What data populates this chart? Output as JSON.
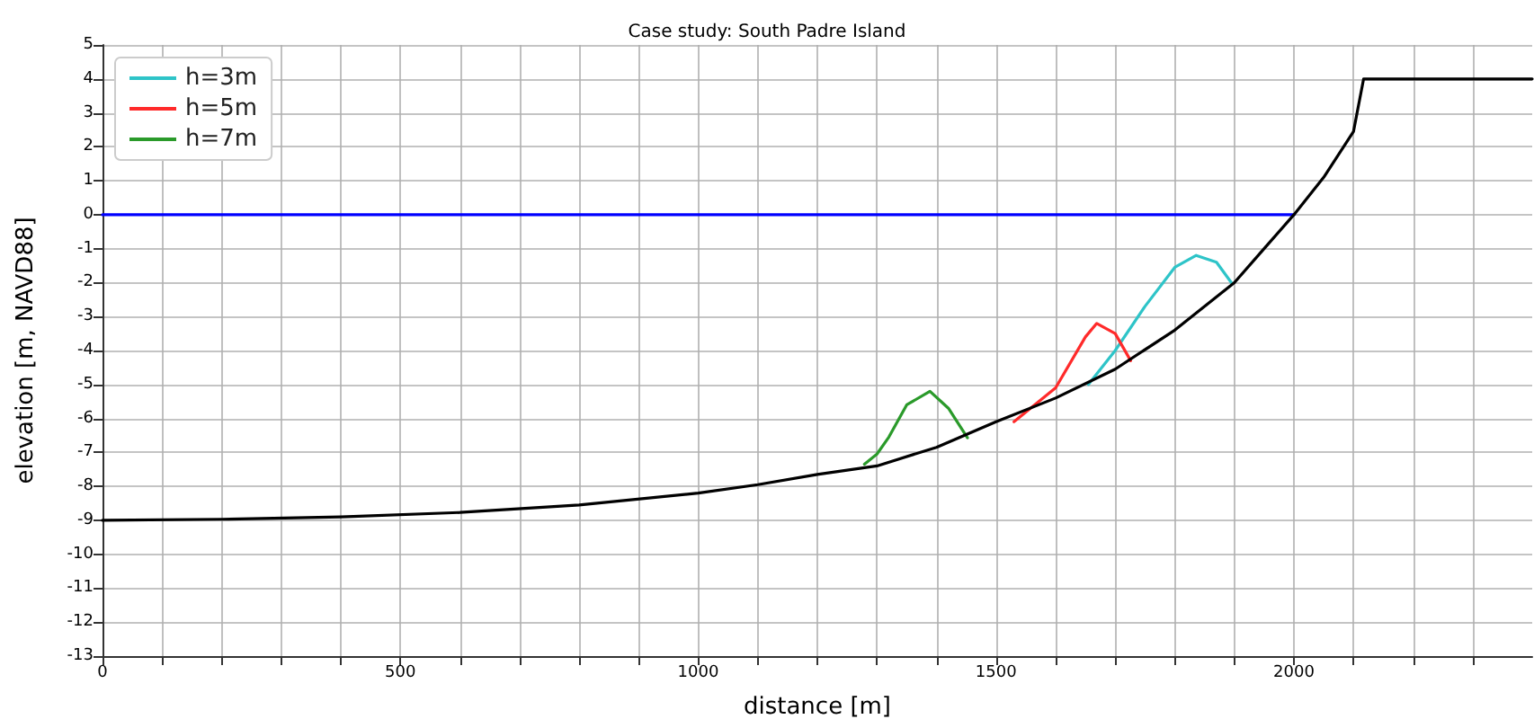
{
  "chart_data": {
    "type": "line",
    "title": "Case study: South Padre Island",
    "xlabel": "distance [m]",
    "ylabel": "elevation [m, NAVD88]",
    "series": [
      {
        "color": "#0000ff",
        "x": [
          0,
          2000
        ],
        "values": [
          0,
          0
        ]
      },
      {
        "name": "h=3m",
        "color": "#2ec4c8",
        "x": [
          1655,
          1700,
          1750,
          1800,
          1836,
          1870,
          1895
        ],
        "values": [
          -5.0,
          -4.0,
          -2.7,
          -1.55,
          -1.2,
          -1.4,
          -2.0
        ]
      },
      {
        "name": "h=5m",
        "color": "#ff2a2a",
        "x": [
          1530,
          1600,
          1650,
          1669,
          1700,
          1726
        ],
        "values": [
          -6.1,
          -5.1,
          -3.6,
          -3.2,
          -3.5,
          -4.3
        ]
      },
      {
        "name": "h=7m",
        "color": "#2a9a2a",
        "x": [
          1279,
          1300,
          1320,
          1350,
          1389,
          1420,
          1452
        ],
        "values": [
          -7.35,
          -7.05,
          -6.55,
          -5.6,
          -5.2,
          -5.7,
          -6.57
        ]
      },
      {
        "color": "#000000",
        "x": [
          0,
          200,
          400,
          600,
          800,
          1000,
          1100,
          1200,
          1300,
          1400,
          1500,
          1600,
          1700,
          1800,
          1900,
          1950,
          2000,
          2050,
          2100,
          2117,
          2400
        ],
        "values": [
          -9,
          -8.97,
          -8.9,
          -8.77,
          -8.55,
          -8.2,
          -7.95,
          -7.65,
          -7.4,
          -6.85,
          -6.1,
          -5.4,
          -4.55,
          -3.4,
          -2.0,
          -1.0,
          0,
          1.1,
          2.45,
          4,
          4
        ]
      }
    ],
    "xlim": [
      0,
      2400
    ],
    "xticks": [
      0,
      {
        "value": 100,
        "label": null
      },
      {
        "value": 200,
        "label": null
      },
      {
        "value": 300,
        "label": null
      },
      {
        "value": 400,
        "label": null
      },
      500,
      {
        "value": 600,
        "label": null
      },
      {
        "value": 700,
        "label": null
      },
      {
        "value": 800,
        "label": null
      },
      {
        "value": 900,
        "label": null
      },
      1000,
      {
        "value": 1100,
        "label": null
      },
      {
        "value": 1200,
        "label": null
      },
      {
        "value": 1300,
        "label": null
      },
      {
        "value": 1400,
        "label": null
      },
      1500,
      {
        "value": 1600,
        "label": null
      },
      {
        "value": 1700,
        "label": null
      },
      {
        "value": 1800,
        "label": null
      },
      {
        "value": 1900,
        "label": null
      },
      2000,
      {
        "value": 2100,
        "label": null
      },
      {
        "value": 2200,
        "label": null
      },
      {
        "value": 2300,
        "label": null
      }
    ],
    "ylim": [
      -13,
      5
    ],
    "yticks": [
      -13,
      -12,
      -11,
      -10,
      -9,
      -8,
      -7,
      -6,
      -5,
      -4,
      -3,
      -2,
      -1,
      0,
      1,
      2,
      3,
      4,
      5
    ],
    "grid": true,
    "legend": "top left",
    "marker": "none",
    "line_style": "solid"
  }
}
